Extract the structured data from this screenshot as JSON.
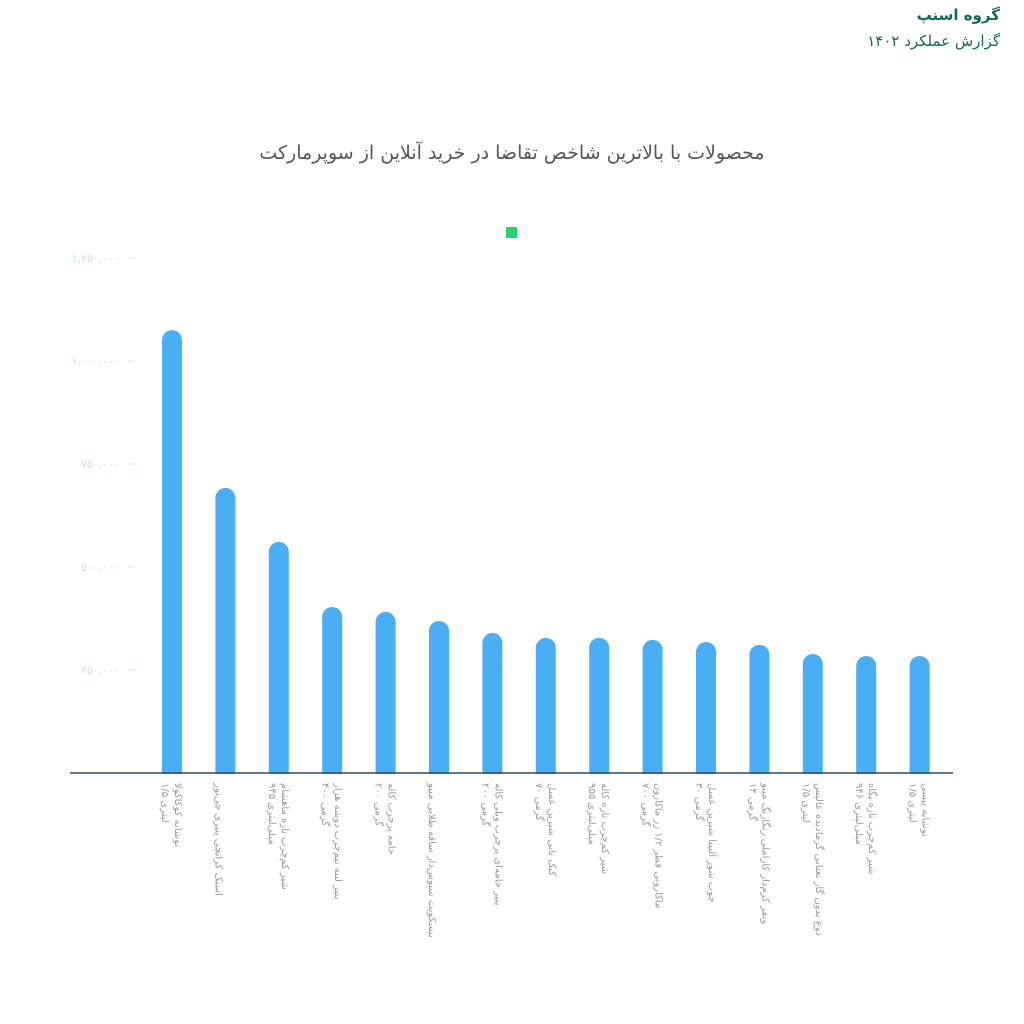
{
  "header": {
    "brand": "گروه اسنپ",
    "report": "گزارش عملکرد ۱۴۰۲"
  },
  "colors": {
    "bar": "#4aaef5",
    "legend": "#22d46a",
    "axis": "#2c4a6e",
    "tick_label": "#bfe6ef",
    "header": "#0e6b5c"
  },
  "chart_data": {
    "type": "bar",
    "title": "محصولات با بالاترین شاخص تقاضا در خرید آنلاین از سوپرمارکت",
    "legend": {
      "placement": "top-center",
      "entries": [
        ""
      ]
    },
    "ylim": [
      0,
      1250000
    ],
    "yticks": [
      250000,
      500000,
      750000,
      1000000,
      1250000
    ],
    "ytick_labels": [
      "۲۵۰,۰۰۰",
      "۵۰۰,۰۰۰",
      "۷۵۰,۰۰۰",
      "۱,۰۰۰,۰۰۰",
      "۱,۲۵۰,۰۰۰"
    ],
    "grid": false,
    "categories": [
      "نوشابه کوکاکولا\n۱/۵ لیتری",
      "اسنک کرانچی پنیری چی‌توز",
      "شیر کم‌چرب تازه ماهشام\n۹۴۵ میلی‌لیتری",
      "پنیر لبنه نیم‌چرب دوشه هراز\n۴۰۰ گرمی",
      "خامه پرچرب کاله\n۲۰۰ گرمی",
      "بیسکویت سبوس‌دار ساقه طلایی مینو",
      "پنیر خامه‌ای پرچرب ویلی کاله\n۲۰۰ گرمی",
      "کیک تابی شیرین عسل\n۷۰ گرمی",
      "شیر کم‌چرب تازه کاله\n۹۵۵ میلی‌لیتری",
      "ماکارونی قطر ۱/۲ زر ماکارون\n۷۰۰ گرمی",
      "چوب شور آلبینا شیرین عسل\n۳۰ گرمی",
      "ویفر کرم‌دار کاراملی رنگارنگ مینو\n۱۴ گرمی",
      "دوغ بدون گاز نعنایی گرمادیده عالیس\n۱/۵ لیتری",
      "شیر کم‌چرب تازه پگاه\n۹۴۶ میلی‌لیتری",
      "نوشابه پپسی\n۱/۵ لیتری"
    ],
    "values": [
      1075000,
      692000,
      561000,
      403000,
      391000,
      369000,
      340000,
      328000,
      328000,
      323000,
      318000,
      311000,
      289000,
      284000,
      284000
    ]
  }
}
